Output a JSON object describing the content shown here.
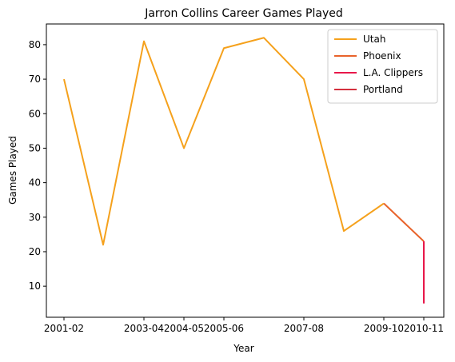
{
  "chart_data": {
    "type": "line",
    "title": "Jarron Collins Career Games Played",
    "xlabel": "Year",
    "ylabel": "Games Played",
    "x": [
      "2001-02",
      "2002-03",
      "2003-04",
      "2004-05",
      "2005-06",
      "2006-07",
      "2007-08",
      "2008-09",
      "2009-10",
      "2010-11"
    ],
    "xticks": [
      "2001-02",
      "2003-04",
      "2004-05",
      "2005-06",
      "2007-08",
      "2009-10",
      "2010-11"
    ],
    "xtick_positions": [
      "2001-02",
      "2003-04",
      "2004-05",
      "2005-06",
      "2007-08",
      "2009-10",
      "2010-11"
    ],
    "yticks": [
      10,
      20,
      30,
      40,
      50,
      60,
      70,
      80
    ],
    "ylim": [
      1,
      86
    ],
    "grid": false,
    "legend_position": "top-right",
    "series": [
      {
        "name": "Utah",
        "color": "#f5a11c",
        "points": [
          [
            "2001-02",
            70
          ],
          [
            "2002-03",
            22
          ],
          [
            "2003-04",
            81
          ],
          [
            "2004-05",
            50
          ],
          [
            "2005-06",
            79
          ],
          [
            "2006-07",
            82
          ],
          [
            "2007-08",
            70
          ],
          [
            "2008-09",
            26
          ],
          [
            "2009-10",
            34
          ]
        ]
      },
      {
        "name": "Phoenix",
        "color": "#e8632b",
        "points": [
          [
            "2009-10",
            34
          ],
          [
            "2010-11",
            23
          ]
        ]
      },
      {
        "name": "L.A. Clippers",
        "color": "#e8174a",
        "points": [
          [
            "2010-11",
            23
          ],
          [
            "2010-11",
            5
          ]
        ]
      },
      {
        "name": "Portland",
        "color": "#d4303e",
        "points": []
      }
    ]
  }
}
